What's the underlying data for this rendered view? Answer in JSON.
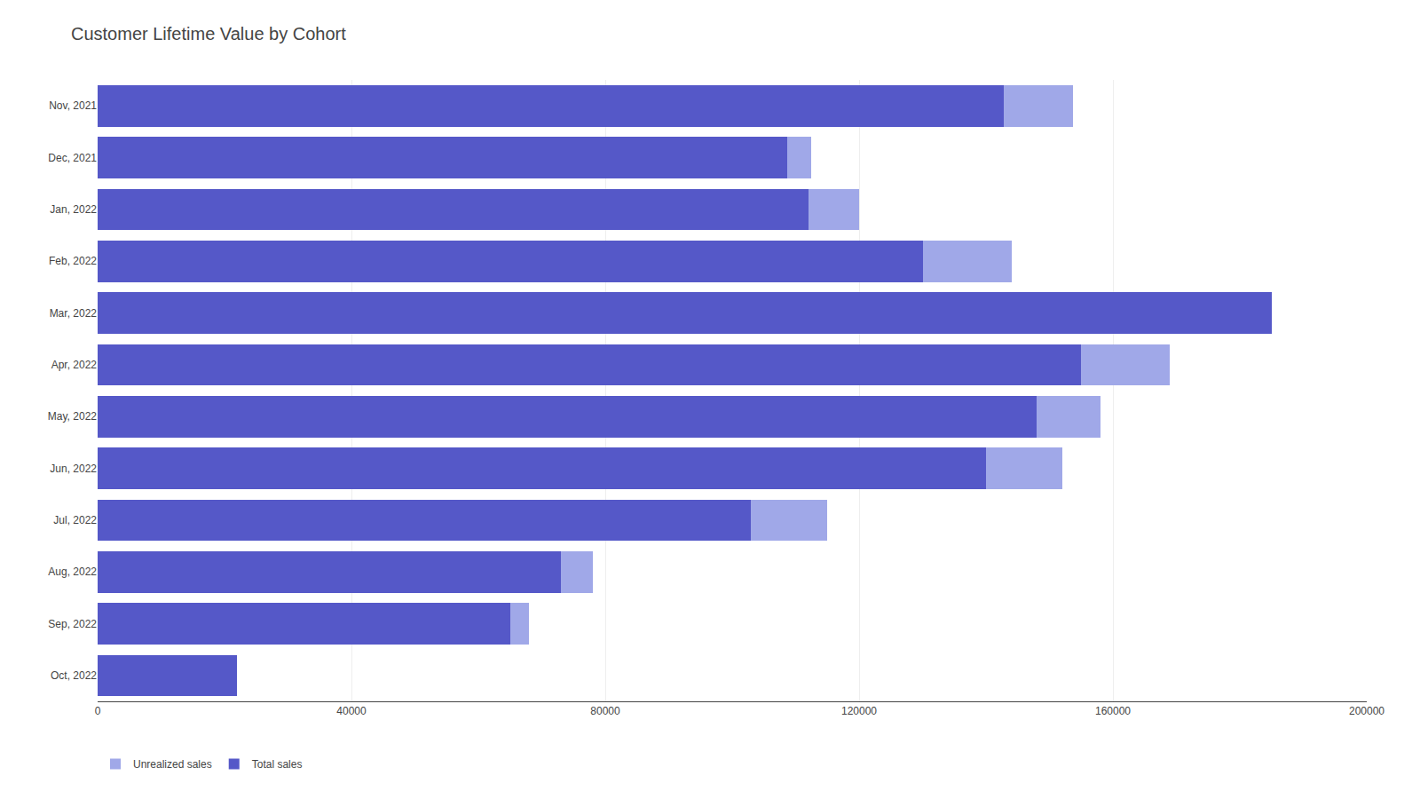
{
  "chart_data": {
    "type": "bar",
    "title": "Customer Lifetime Value by Cohort",
    "orientation": "horizontal",
    "stacked": true,
    "categories": [
      "Nov, 2021",
      "Dec, 2021",
      "Jan, 2022",
      "Feb, 2022",
      "Mar, 2022",
      "Apr, 2022",
      "May, 2022",
      "Jun, 2022",
      "Jul, 2022",
      "Aug, 2022",
      "Sep, 2022",
      "Oct, 2022"
    ],
    "series": [
      {
        "name": "Total sales",
        "color": "#5558c8",
        "values": [
          142834,
          108726,
          112000,
          130000,
          185000,
          155000,
          148000,
          140000,
          103000,
          73000,
          65000,
          22000
        ]
      },
      {
        "name": "Unrealized sales",
        "color": "#a0a8e8",
        "values": [
          10818,
          3689,
          8000,
          14000,
          0,
          14000,
          10000,
          12000,
          12000,
          5000,
          3000,
          0
        ]
      }
    ],
    "xlim": [
      0,
      200000
    ],
    "xticks": [
      0,
      40000,
      80000,
      120000,
      160000,
      200000
    ],
    "grid": true,
    "legend": "bottom"
  }
}
